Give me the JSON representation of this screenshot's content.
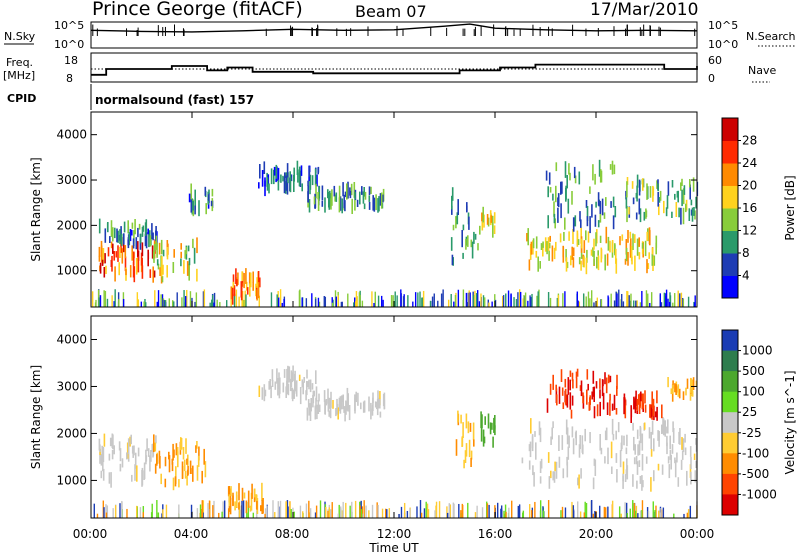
{
  "header": {
    "station": "Prince George (fitACF)",
    "beam": "Beam 07",
    "date": "17/Mar/2010"
  },
  "top_panels": {
    "nsky_label": "N.Sky",
    "nsky_ticks": [
      "10^5",
      "10^0"
    ],
    "nsearch_label": "N.Search",
    "nsearch_ticks": [
      "10^5",
      "10^0"
    ],
    "freq_label": "Freq.",
    "freq_unit": "[MHz]",
    "freq_ticks": [
      "18",
      "8"
    ],
    "nave_label": "Nave",
    "nave_ticks": [
      "60",
      "0"
    ],
    "cpid_label": "CPID",
    "cpid_text": "normalsound (fast) 157"
  },
  "axes": {
    "ylabel": "Slant Range [km]",
    "y_ticks": [
      "1000",
      "2000",
      "3000",
      "4000"
    ],
    "x_ticks": [
      "00:00",
      "04:00",
      "08:00",
      "12:00",
      "16:00",
      "20:00",
      "00:00"
    ],
    "xlabel": "Time UT"
  },
  "power_colorbar": {
    "label": "Power [dB]",
    "ticks": [
      "4",
      "8",
      "12",
      "16",
      "20",
      "24",
      "28"
    ],
    "colors": [
      "#0000ff",
      "#1e3cb4",
      "#2a9a6a",
      "#88cc3a",
      "#ffd21e",
      "#ff8a00",
      "#ff2a00",
      "#cc0000"
    ]
  },
  "velocity_colorbar": {
    "label": "Velocity [m s^-1]",
    "ticks": [
      "1000",
      "500",
      "100",
      "25",
      "-25",
      "-100",
      "-500",
      "-1000"
    ],
    "colors": [
      "#1a3cb4",
      "#2e7d4e",
      "#4ca82e",
      "#66dd22",
      "#c8c8c8",
      "#ffcc33",
      "#ff8c00",
      "#ff4400",
      "#dd0000"
    ]
  },
  "chart_data": [
    {
      "type": "line",
      "title": "N.Sky / N.Search",
      "x": [
        0,
        2,
        4,
        6,
        8,
        10,
        12,
        14,
        15,
        16,
        18,
        20,
        22,
        24
      ],
      "series": [
        {
          "name": "N.Sky",
          "values": [
            3.4,
            3.2,
            3.1,
            3.3,
            3.6,
            3.4,
            3.5,
            4.2,
            4.6,
            3.8,
            3.5,
            3.3,
            3.4,
            3.3
          ]
        }
      ],
      "ylim": [
        0,
        5
      ]
    },
    {
      "type": "line",
      "title": "Freq. [MHz] / Nave",
      "x": [
        0,
        0.6,
        3.2,
        4.6,
        5.4,
        6.4,
        8.8,
        14.6,
        16.2,
        17.6,
        22.7,
        24
      ],
      "series": [
        {
          "name": "Freq.",
          "values": [
            10.5,
            12.5,
            13.5,
            12.0,
            13.0,
            11.5,
            11.0,
            12.0,
            13.0,
            14.0,
            12.5,
            13.5
          ]
        }
      ],
      "ylim": [
        8,
        18
      ]
    },
    {
      "type": "heatmap",
      "title": "Power [dB]",
      "xlabel": "Time UT",
      "ylabel": "Slant Range [km]",
      "xlim": [
        0,
        24
      ],
      "ylim": [
        200,
        4500
      ],
      "regions": [
        {
          "t": [
            0.3,
            2.6
          ],
          "r": [
            900,
            1600
          ],
          "value": 26
        },
        {
          "t": [
            0.3,
            2.6
          ],
          "r": [
            1600,
            2000
          ],
          "value": 10
        },
        {
          "t": [
            2.4,
            4.2
          ],
          "r": [
            800,
            1700
          ],
          "value": 18
        },
        {
          "t": [
            3.8,
            4.8
          ],
          "r": [
            2300,
            2800
          ],
          "value": 10
        },
        {
          "t": [
            5.4,
            6.8
          ],
          "r": [
            400,
            900
          ],
          "value": 24
        },
        {
          "t": [
            6.6,
            9.0
          ],
          "r": [
            2800,
            3300
          ],
          "value": 8
        },
        {
          "t": [
            8.5,
            11.6
          ],
          "r": [
            2400,
            2800
          ],
          "value": 12
        },
        {
          "t": [
            14.2,
            15.4
          ],
          "r": [
            1200,
            2700
          ],
          "value": 12
        },
        {
          "t": [
            15.4,
            16.0
          ],
          "r": [
            1800,
            2300
          ],
          "value": 18
        },
        {
          "t": [
            17.2,
            22.4
          ],
          "r": [
            1100,
            1800
          ],
          "value": 20
        },
        {
          "t": [
            18.0,
            20.8
          ],
          "r": [
            2000,
            3300
          ],
          "value": 12
        },
        {
          "t": [
            21.0,
            24.0
          ],
          "r": [
            2200,
            3000
          ],
          "value": 14
        }
      ]
    },
    {
      "type": "heatmap",
      "title": "Velocity [m s^-1]",
      "xlabel": "Time UT",
      "ylabel": "Slant Range [km]",
      "xlim": [
        0,
        24
      ],
      "ylim": [
        200,
        4500
      ],
      "regions": [
        {
          "t": [
            0.3,
            2.6
          ],
          "r": [
            1000,
            1900
          ],
          "value": 0
        },
        {
          "t": [
            2.4,
            4.6
          ],
          "r": [
            900,
            1800
          ],
          "value": -300
        },
        {
          "t": [
            5.4,
            6.8
          ],
          "r": [
            400,
            800
          ],
          "value": -300
        },
        {
          "t": [
            6.6,
            9.0
          ],
          "r": [
            2800,
            3300
          ],
          "value": 0
        },
        {
          "t": [
            8.5,
            11.6
          ],
          "r": [
            2400,
            2800
          ],
          "value": 0
        },
        {
          "t": [
            14.4,
            15.2
          ],
          "r": [
            1300,
            2400
          ],
          "value": -200
        },
        {
          "t": [
            15.4,
            16.0
          ],
          "r": [
            1800,
            2300
          ],
          "value": 100
        },
        {
          "t": [
            17.0,
            24.0
          ],
          "r": [
            900,
            2200
          ],
          "value": 0
        },
        {
          "t": [
            18.0,
            20.8
          ],
          "r": [
            2400,
            3300
          ],
          "value": -500
        },
        {
          "t": [
            21.0,
            22.6
          ],
          "r": [
            2400,
            2800
          ],
          "value": -800
        },
        {
          "t": [
            22.8,
            24.0
          ],
          "r": [
            2800,
            3100
          ],
          "value": -400
        }
      ]
    }
  ]
}
